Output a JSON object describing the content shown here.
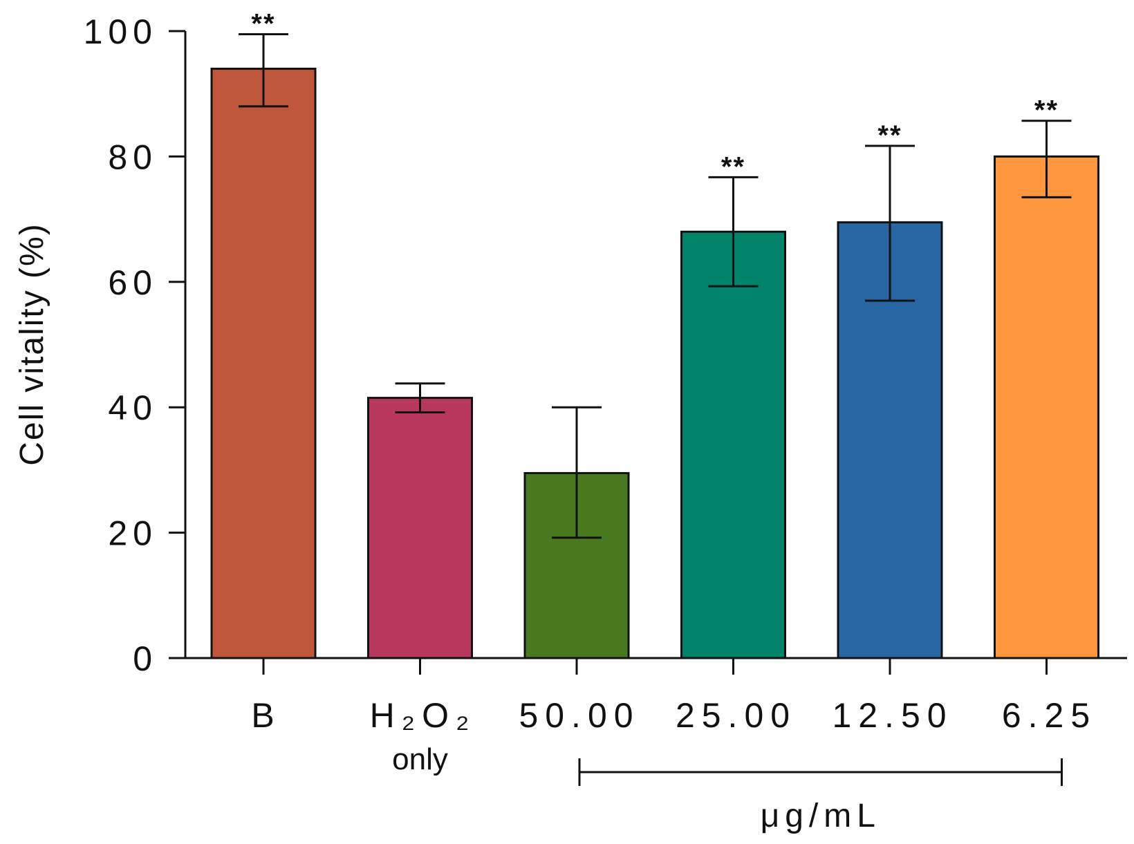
{
  "chart_data": {
    "type": "bar",
    "title": "",
    "ylabel": "Cell vitality (%)",
    "xlabel": "",
    "ylim": [
      0,
      100
    ],
    "yticks": [
      0,
      20,
      40,
      60,
      80,
      100
    ],
    "ytick_labels": [
      "0",
      "20",
      "40",
      "60",
      "80",
      "100"
    ],
    "categories": [
      "B",
      "H₂O₂",
      "50.00",
      "25.00",
      "12.50",
      "6.25"
    ],
    "category_sublabels": [
      "",
      "only",
      "",
      "",
      "",
      ""
    ],
    "values": [
      94,
      41.5,
      29.5,
      68,
      69.5,
      80
    ],
    "error_upper": [
      99.5,
      43.8,
      40,
      76.7,
      81.7,
      85.7
    ],
    "error_lower": [
      88,
      39.2,
      19.2,
      59.3,
      57,
      73.5
    ],
    "significance": [
      "**",
      "",
      "",
      "**",
      "**",
      "**"
    ],
    "colors": [
      "#BD563A",
      "#B8375C",
      "#4A7A20",
      "#008368",
      "#2866A4",
      "#FD963C"
    ],
    "bracket": {
      "label": "μg/mL",
      "from_category": 2,
      "to_category": 5
    }
  }
}
